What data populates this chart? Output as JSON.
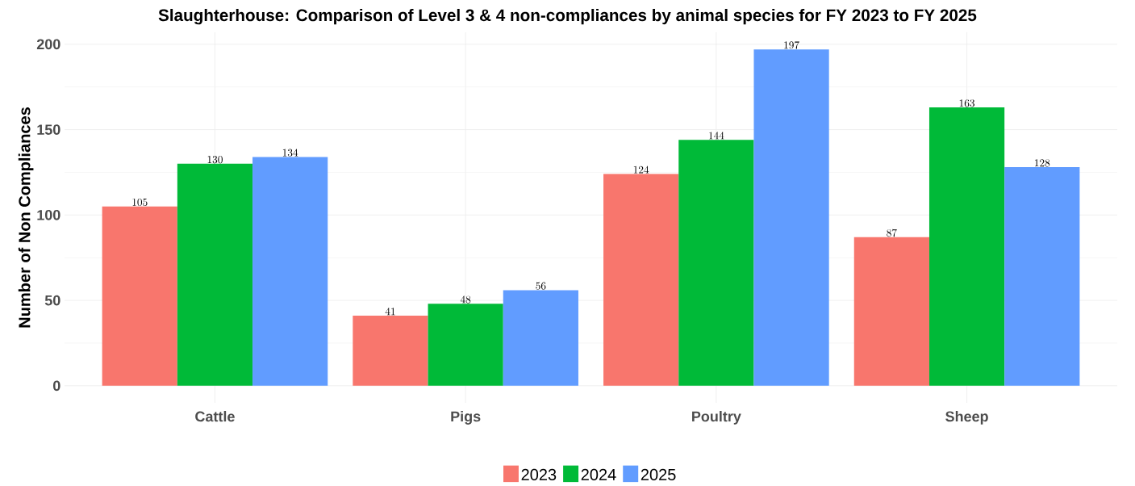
{
  "chart_data": {
    "type": "bar",
    "title": "Slaughterhouse: Comparison of Level 3 & 4 non-compliances by animal species for FY 2023 to FY 2025",
    "ylabel": "Number of Non Compliances",
    "categories": [
      "Cattle",
      "Pigs",
      "Poultry",
      "Sheep"
    ],
    "series": [
      {
        "name": "2023",
        "color": "#f8766d",
        "values": [
          105,
          41,
          124,
          87
        ]
      },
      {
        "name": "2024",
        "color": "#00ba38",
        "values": [
          130,
          48,
          144,
          163
        ]
      },
      {
        "name": "2025",
        "color": "#619cff",
        "values": [
          134,
          56,
          197,
          128
        ]
      }
    ],
    "ylim": [
      -10,
      207
    ],
    "yticks": [
      0,
      50,
      100,
      150,
      200
    ],
    "grid": true,
    "legend": "bottom",
    "data_labels": true
  }
}
